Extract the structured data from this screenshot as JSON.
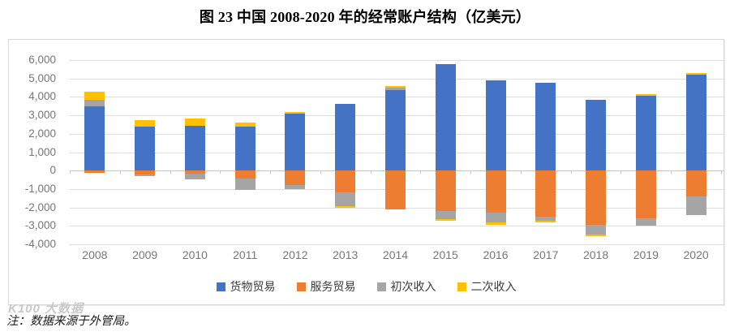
{
  "title": "图 23 中国 2008-2020 年的经常账户结构（亿美元）",
  "note": "注：数据来源于外管局。",
  "watermark": "K100 大数据",
  "chart_data": {
    "type": "bar",
    "stacked": true,
    "title": "图 23 中国 2008-2020 年的经常账户结构（亿美元）",
    "unit": "亿美元",
    "categories": [
      "2008",
      "2009",
      "2010",
      "2011",
      "2012",
      "2013",
      "2014",
      "2015",
      "2016",
      "2017",
      "2018",
      "2019",
      "2020"
    ],
    "series": [
      {
        "name": "货物贸易",
        "color": "#4472C4",
        "values": [
          3500,
          2370,
          2430,
          2370,
          3100,
          3600,
          4380,
          5780,
          4890,
          4780,
          3840,
          4060,
          5190
        ]
      },
      {
        "name": "服务贸易",
        "color": "#ED7D31",
        "values": [
          -110,
          -220,
          -180,
          -440,
          -770,
          -1180,
          -2090,
          -2200,
          -2280,
          -2500,
          -2940,
          -2570,
          -1400
        ]
      },
      {
        "name": "初次收入",
        "color": "#A5A5A5",
        "values": [
          320,
          -80,
          -310,
          -620,
          -220,
          -740,
          130,
          -440,
          -540,
          -210,
          -540,
          -400,
          -1030
        ]
      },
      {
        "name": "二次收入",
        "color": "#FFC000",
        "values": [
          450,
          350,
          410,
          250,
          60,
          -100,
          60,
          -90,
          -120,
          -100,
          -70,
          100,
          100
        ]
      }
    ],
    "ylim": [
      -4000,
      6000
    ],
    "ytick_step": 1000,
    "ytick_labels": [
      "6,000",
      "5,000",
      "4,000",
      "3,000",
      "2,000",
      "1,000",
      "0",
      "-1,000",
      "-2,000",
      "-3,000",
      "-4,000"
    ],
    "grid": true,
    "legend_position": "bottom",
    "axis_label_color": "#767676",
    "gridline_color": "#dedede"
  }
}
